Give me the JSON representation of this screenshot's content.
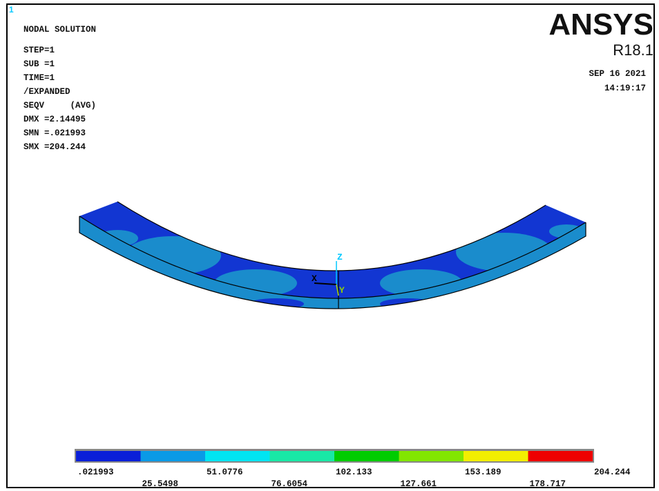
{
  "corner_label": "1",
  "info": [
    "NODAL SOLUTION",
    "STEP=1",
    "SUB =1",
    "TIME=1",
    "/EXPANDED",
    "SEQV     (AVG)",
    "DMX =2.14495",
    "SMN =.021993",
    "SMX =204.244"
  ],
  "brand": "ANSYS",
  "version": "R18.1",
  "date": "SEP 16 2021",
  "time": "14:19:17",
  "triad": {
    "z": "Z",
    "x": "X",
    "y": "Y"
  },
  "legend": {
    "colors": [
      "#0a1fd8",
      "#0a9ae6",
      "#00e5f2",
      "#19e8a6",
      "#00cc00",
      "#82e600",
      "#f2ee00",
      "#ee0000"
    ],
    "labels": [
      ".021993",
      "25.5498",
      "51.0776",
      "76.6054",
      "102.133",
      "127.661",
      "153.189",
      "178.717",
      "204.244"
    ]
  }
}
